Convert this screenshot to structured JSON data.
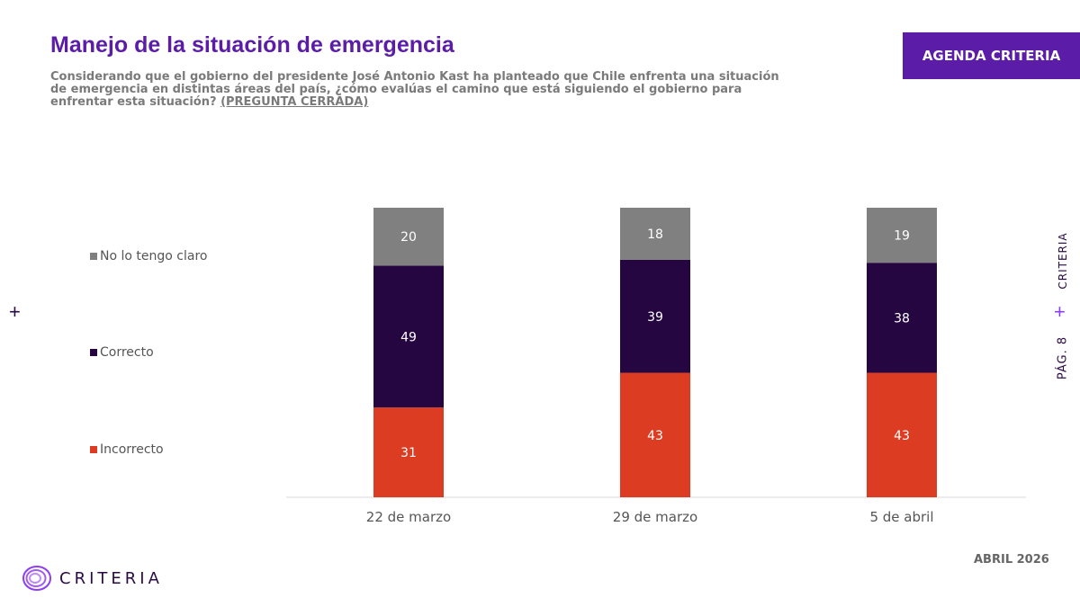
{
  "header": {
    "title": "Manejo de la situación de emergencia",
    "subtitle": "Considerando que el gobierno del presidente José Antonio Kast ha planteado que Chile enfrenta una situación de emergencia en distintas áreas del país, ¿cómo evalúas el camino que está siguiendo el gobierno para enfrentar esta situación?",
    "subtitle_tag": "(PREGUNTA CERRADA)",
    "badge": "AGENDA CRITERIA"
  },
  "side": {
    "brand": "CRITERIA",
    "page": "PÁG. 8"
  },
  "footer": {
    "date": "ABRIL 2026",
    "logo_text": "CRITERIA"
  },
  "legend": [
    {
      "label": "No lo tengo claro",
      "color": "#808080"
    },
    {
      "label": "Correcto",
      "color": "#250640"
    },
    {
      "label": "Incorrecto",
      "color": "#dc3d22"
    }
  ],
  "chart_data": {
    "type": "bar",
    "stacked": true,
    "categories": [
      "22 de marzo",
      "29 de marzo",
      "5 de abril"
    ],
    "series": [
      {
        "name": "Incorrecto",
        "values": [
          31,
          43,
          43
        ],
        "color": "#dc3d22"
      },
      {
        "name": "Correcto",
        "values": [
          49,
          39,
          38
        ],
        "color": "#250640"
      },
      {
        "name": "No lo tengo claro",
        "values": [
          20,
          18,
          19
        ],
        "color": "#808080"
      }
    ],
    "ylim": [
      0,
      100
    ],
    "grid": false,
    "legend_position": "left"
  }
}
